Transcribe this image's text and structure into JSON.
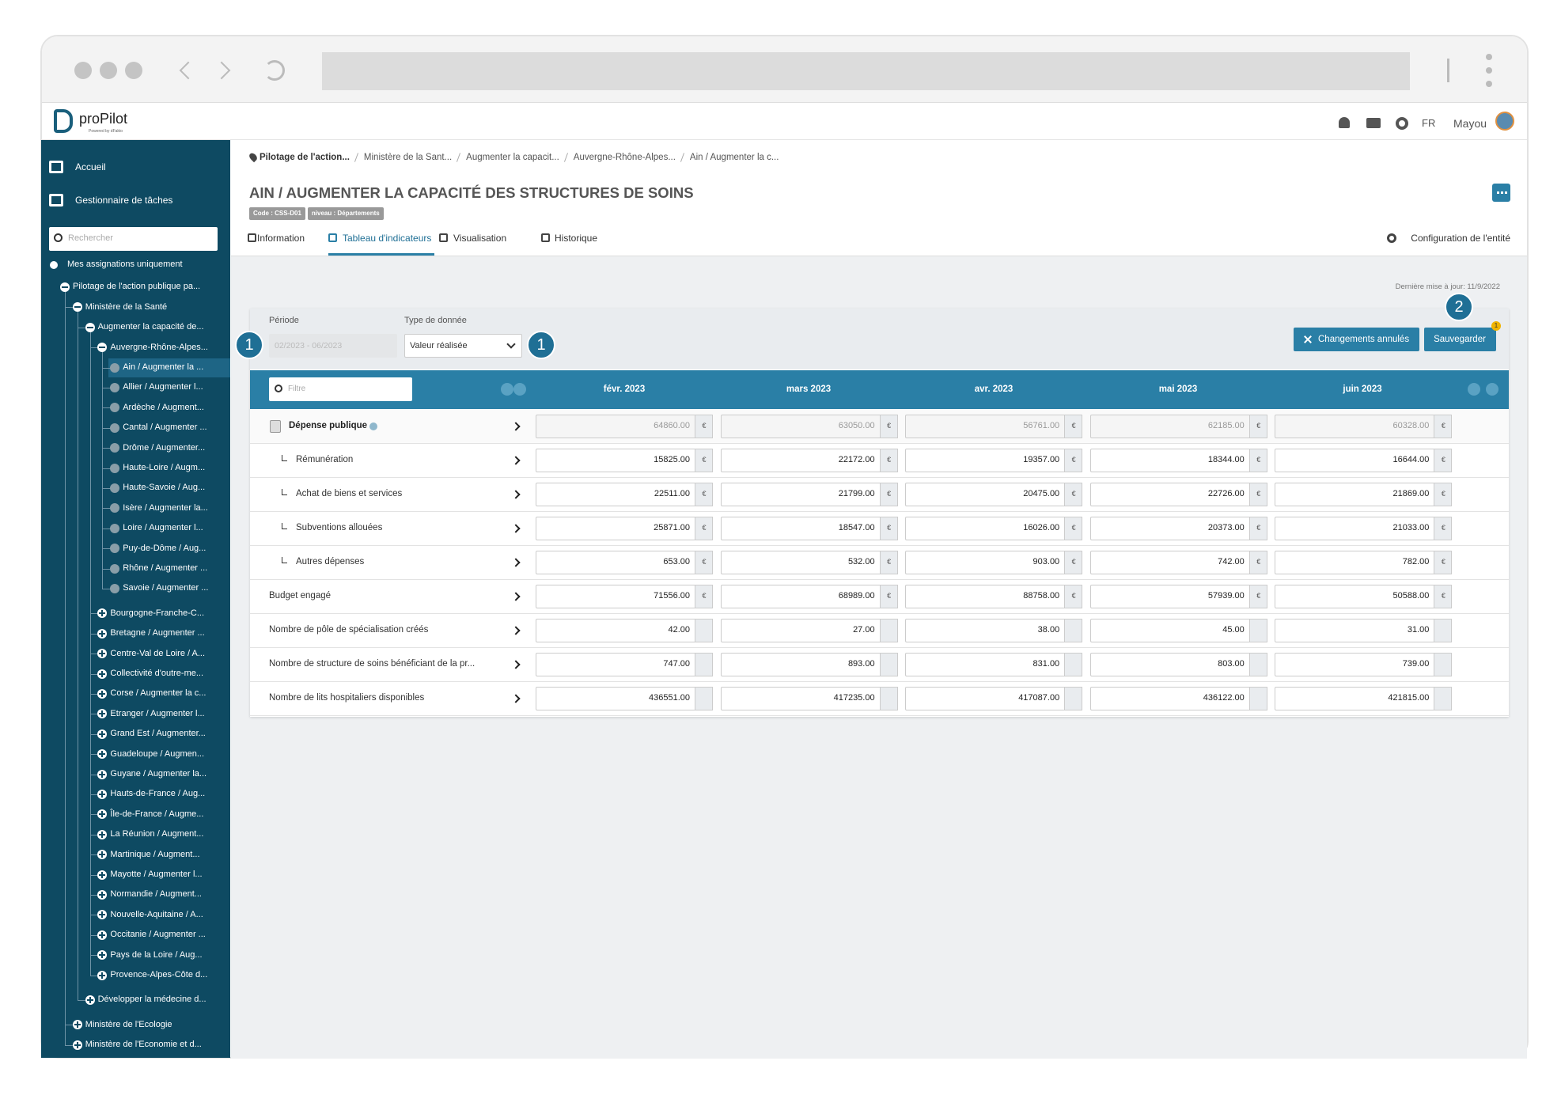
{
  "app": {
    "logo": "proPilot",
    "logo_sub": "Powered by dFakto",
    "lang": "FR",
    "user": "Mayou"
  },
  "sidebar": {
    "nav": [
      "Accueil",
      "Gestionnaire de tâches"
    ],
    "search_placeholder": "Rechercher",
    "filter": "Mes assignations uniquement",
    "tree": [
      {
        "label": "Pilotage de l'action publique pa...",
        "open": true,
        "children": [
          {
            "label": "Ministère de la Santé",
            "open": true,
            "children": [
              {
                "label": "Augmenter la capacité de...",
                "open": true,
                "children": [
                  {
                    "label": "Auvergne-Rhône-Alpes...",
                    "open": true,
                    "children": [
                      {
                        "label": "Ain / Augmenter la ...",
                        "selected": true
                      },
                      {
                        "label": "Allier / Augmenter l..."
                      },
                      {
                        "label": "Ardèche / Augment..."
                      },
                      {
                        "label": "Cantal / Augmenter ..."
                      },
                      {
                        "label": "Drôme / Augmenter..."
                      },
                      {
                        "label": "Haute-Loire / Augm..."
                      },
                      {
                        "label": "Haute-Savoie / Aug..."
                      },
                      {
                        "label": "Isère / Augmenter la..."
                      },
                      {
                        "label": "Loire / Augmenter l..."
                      },
                      {
                        "label": "Puy-de-Dôme / Aug..."
                      },
                      {
                        "label": "Rhône / Augmenter ..."
                      },
                      {
                        "label": "Savoie / Augmenter ..."
                      }
                    ]
                  },
                  {
                    "label": "Bourgogne-Franche-C...",
                    "open": false
                  },
                  {
                    "label": "Bretagne / Augmenter ...",
                    "open": false
                  },
                  {
                    "label": "Centre-Val de Loire / A...",
                    "open": false
                  },
                  {
                    "label": "Collectivité d'outre-me...",
                    "open": false
                  },
                  {
                    "label": "Corse / Augmenter la c...",
                    "open": false
                  },
                  {
                    "label": "Etranger / Augmenter l...",
                    "open": false
                  },
                  {
                    "label": "Grand Est / Augmenter...",
                    "open": false
                  },
                  {
                    "label": "Guadeloupe / Augmen...",
                    "open": false
                  },
                  {
                    "label": "Guyane / Augmenter la...",
                    "open": false
                  },
                  {
                    "label": "Hauts-de-France / Aug...",
                    "open": false
                  },
                  {
                    "label": "Île-de-France / Augme...",
                    "open": false
                  },
                  {
                    "label": "La Réunion / Augment...",
                    "open": false
                  },
                  {
                    "label": "Martinique / Augment...",
                    "open": false
                  },
                  {
                    "label": "Mayotte / Augmenter l...",
                    "open": false
                  },
                  {
                    "label": "Normandie / Augment...",
                    "open": false
                  },
                  {
                    "label": "Nouvelle-Aquitaine / A...",
                    "open": false
                  },
                  {
                    "label": "Occitanie / Augmenter ...",
                    "open": false
                  },
                  {
                    "label": "Pays de la Loire / Aug...",
                    "open": false
                  },
                  {
                    "label": "Provence-Alpes-Côte d...",
                    "open": false
                  }
                ]
              },
              {
                "label": "Développer la médecine d...",
                "open": false
              }
            ]
          },
          {
            "label": "Ministère de l'Ecologie",
            "open": false
          },
          {
            "label": "Ministère de l'Economie et d...",
            "open": false
          }
        ]
      }
    ]
  },
  "breadcrumb": [
    "Pilotage de l'action...",
    "Ministère de la Sant...",
    "Augmenter la capacit...",
    "Auvergne-Rhône-Alpes...",
    "Ain / Augmenter la c..."
  ],
  "header": {
    "title": "AIN / AUGMENTER LA CAPACITÉ DES STRUCTURES DE SOINS",
    "badges": [
      "Code : CSS-D01",
      "niveau : Départements"
    ],
    "tabs": [
      "Information",
      "Tableau d'indicateurs",
      "Visualisation",
      "Historique"
    ],
    "active_tab": "Tableau d'indicateurs",
    "config": "Configuration de l'entité"
  },
  "last_update": "Dernière mise à jour: 11/9/2022",
  "controls": {
    "period_label": "Période",
    "period_value": "02/2023 - 06/2023",
    "type_label": "Type de donnée",
    "type_value": "Valeur réalisée",
    "cancel": "Changements annulés",
    "save": "Sauvegarder",
    "save_badge": "1"
  },
  "callouts": [
    "1",
    "1",
    "2"
  ],
  "table": {
    "filter_placeholder": "Filtre",
    "months": [
      "févr. 2023",
      "mars 2023",
      "avr. 2023",
      "mai 2023",
      "juin 2023"
    ],
    "rows": [
      {
        "name": "Dépense publique",
        "bold": true,
        "readonly": true,
        "unit": "€",
        "values": [
          "64860.00",
          "63050.00",
          "56761.00",
          "62185.00",
          "60328.00"
        ]
      },
      {
        "name": "Rémunération",
        "sub": true,
        "unit": "€",
        "values": [
          "15825.00",
          "22172.00",
          "19357.00",
          "18344.00",
          "16644.00"
        ]
      },
      {
        "name": "Achat de biens et services",
        "sub": true,
        "unit": "€",
        "values": [
          "22511.00",
          "21799.00",
          "20475.00",
          "22726.00",
          "21869.00"
        ]
      },
      {
        "name": "Subventions allouées",
        "sub": true,
        "unit": "€",
        "values": [
          "25871.00",
          "18547.00",
          "16026.00",
          "20373.00",
          "21033.00"
        ]
      },
      {
        "name": "Autres dépenses",
        "sub": true,
        "unit": "€",
        "values": [
          "653.00",
          "532.00",
          "903.00",
          "742.00",
          "782.00"
        ]
      },
      {
        "name": "Budget engagé",
        "unit": "€",
        "values": [
          "71556.00",
          "68989.00",
          "88758.00",
          "57939.00",
          "50588.00"
        ]
      },
      {
        "name": "Nombre de pôle de spécialisation créés",
        "values": [
          "42.00",
          "27.00",
          "38.00",
          "45.00",
          "31.00"
        ]
      },
      {
        "name": "Nombre de structure de soins bénéficiant de la pr...",
        "values": [
          "747.00",
          "893.00",
          "831.00",
          "803.00",
          "739.00"
        ]
      },
      {
        "name": "Nombre de lits hospitaliers disponibles",
        "values": [
          "436551.00",
          "417235.00",
          "417087.00",
          "436122.00",
          "421815.00"
        ]
      }
    ]
  }
}
